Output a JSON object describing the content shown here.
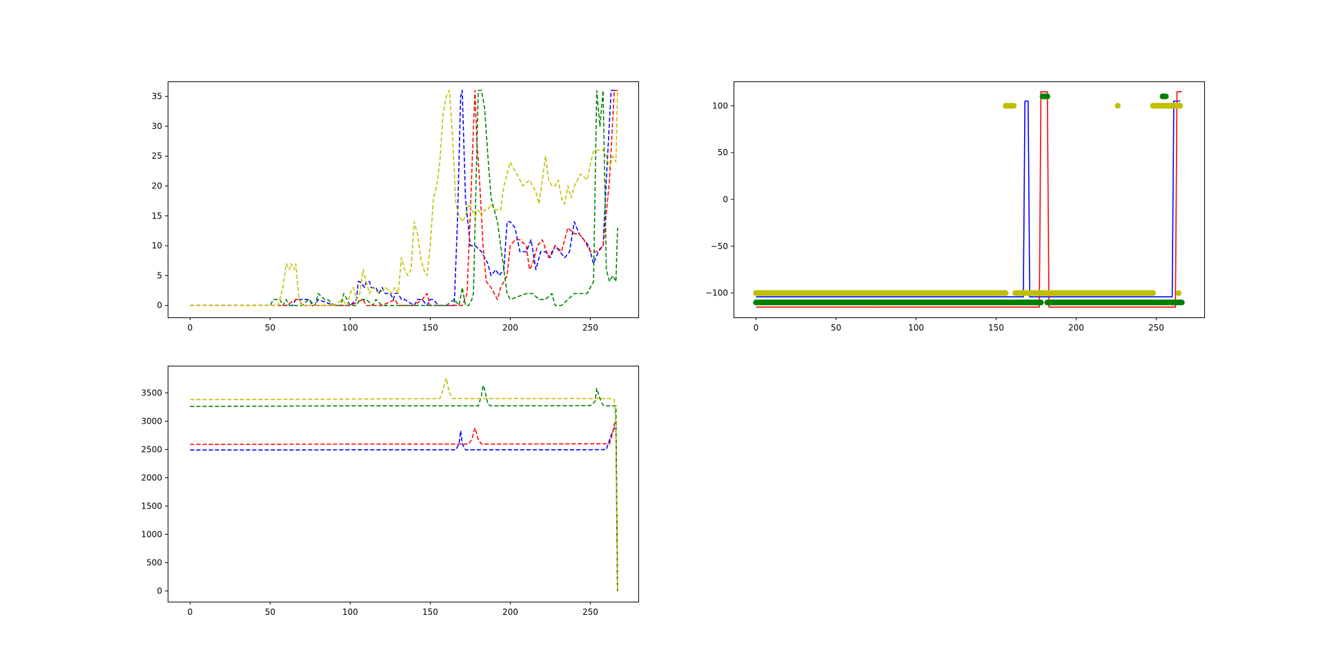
{
  "figure": {
    "background": "#ffffff"
  },
  "chart_data": [
    {
      "type": "line",
      "title": "",
      "xlabel": "",
      "ylabel": "",
      "xlim": [
        -14,
        280
      ],
      "ylim": [
        -2,
        37.5
      ],
      "xticks": [
        0,
        50,
        100,
        150,
        200,
        250
      ],
      "yticks": [
        0,
        5,
        10,
        15,
        20,
        25,
        30,
        35
      ],
      "line_style": "dashed",
      "series": [
        {
          "color": "#0000ff",
          "x": [
            0,
            64,
            66,
            75,
            76,
            78,
            80,
            90,
            100,
            104,
            105,
            106,
            109,
            110,
            112,
            113,
            116,
            118,
            120,
            122,
            125,
            127,
            128,
            130,
            132,
            134,
            140,
            142,
            145,
            148,
            150,
            152,
            155,
            165,
            167,
            169,
            170,
            172,
            175,
            178,
            182,
            186,
            188,
            191,
            193,
            196,
            198,
            200,
            203,
            206,
            210,
            213,
            216,
            219,
            222,
            225,
            228,
            231,
            234,
            237,
            240,
            243,
            246,
            249,
            252,
            255,
            258,
            260,
            263,
            265,
            267
          ],
          "y": [
            0,
            0,
            1,
            1,
            0,
            0,
            1,
            0,
            0,
            1,
            4,
            4,
            3,
            4,
            4,
            3,
            3,
            2,
            3,
            2,
            2,
            1,
            2,
            2,
            1,
            1,
            0,
            1,
            1,
            0,
            1,
            1,
            0,
            0,
            14,
            35,
            36,
            18,
            10,
            10,
            9,
            7,
            5,
            6,
            5,
            6,
            14,
            14,
            13,
            9,
            9,
            11,
            6,
            9,
            9,
            8,
            10,
            9,
            8,
            9,
            14,
            12,
            11,
            10,
            7,
            9,
            10,
            21,
            36,
            36,
            36
          ]
        },
        {
          "color": "#ff0000",
          "x": [
            0,
            60,
            66,
            68,
            70,
            75,
            80,
            100,
            108,
            110,
            112,
            120,
            128,
            130,
            135,
            140,
            145,
            148,
            150,
            155,
            170,
            173,
            175,
            177,
            178,
            179,
            181,
            183,
            185,
            188,
            190,
            192,
            194,
            196,
            198,
            200,
            203,
            206,
            210,
            212,
            214,
            217,
            220,
            224,
            228,
            232,
            236,
            240,
            243,
            246,
            250,
            254,
            258,
            262,
            265,
            267
          ],
          "y": [
            0,
            0,
            1,
            1,
            0,
            0,
            0,
            0,
            1,
            0,
            0,
            0,
            1,
            0,
            0,
            0,
            1,
            2,
            0,
            0,
            0,
            2,
            15,
            30,
            36,
            28,
            20,
            10,
            4,
            3,
            2,
            1,
            3,
            4,
            5,
            10,
            11,
            11,
            10,
            6,
            7,
            10,
            11,
            8,
            10,
            9,
            13,
            12,
            12,
            11,
            9,
            9,
            10,
            21,
            36,
            36
          ]
        },
        {
          "color": "#008000",
          "x": [
            0,
            50,
            52,
            56,
            58,
            60,
            62,
            70,
            74,
            78,
            80,
            84,
            86,
            90,
            94,
            96,
            98,
            100,
            104,
            106,
            110,
            114,
            116,
            120,
            124,
            130,
            140,
            160,
            165,
            168,
            170,
            172,
            174,
            176,
            177,
            179,
            180,
            182,
            184,
            186,
            188,
            190,
            192,
            194,
            196,
            198,
            200,
            210,
            214,
            218,
            222,
            226,
            228,
            232,
            236,
            240,
            244,
            248,
            252,
            254,
            256,
            258,
            260,
            262,
            264,
            266,
            267
          ],
          "y": [
            0,
            0,
            1,
            1,
            0,
            1,
            0,
            0,
            1,
            0,
            2,
            1,
            1,
            0,
            0,
            2,
            1,
            0,
            0,
            1,
            1,
            0,
            1,
            0,
            0,
            0,
            0,
            0,
            1,
            0,
            3,
            0,
            0,
            1,
            2,
            25,
            36,
            36,
            33,
            25,
            18,
            16,
            14,
            10,
            6,
            2,
            1,
            2,
            2,
            1,
            1,
            2,
            0,
            0,
            1,
            2,
            2,
            2,
            4,
            36,
            30,
            36,
            6,
            4,
            5,
            4,
            13
          ]
        },
        {
          "color": "#bfbf00",
          "x": [
            0,
            55,
            58,
            60,
            62,
            63,
            65,
            66,
            68,
            70,
            90,
            95,
            98,
            100,
            102,
            104,
            106,
            108,
            110,
            112,
            114,
            118,
            122,
            126,
            128,
            130,
            132,
            134,
            136,
            138,
            140,
            142,
            144,
            146,
            148,
            150,
            152,
            154,
            156,
            158,
            160,
            162,
            164,
            166,
            168,
            170,
            172,
            174,
            176,
            178,
            180,
            182,
            184,
            186,
            188,
            190,
            192,
            194,
            196,
            198,
            200,
            204,
            208,
            212,
            216,
            218,
            220,
            222,
            224,
            226,
            228,
            230,
            232,
            234,
            236,
            238,
            240,
            244,
            248,
            252,
            256,
            258,
            260,
            262,
            264,
            266,
            267
          ],
          "y": [
            0,
            0,
            3,
            7,
            6,
            7,
            6,
            7,
            1,
            0,
            0,
            1,
            0,
            2,
            3,
            1,
            2,
            6,
            4,
            2,
            3,
            2,
            3,
            2,
            3,
            2,
            8,
            6,
            5,
            6,
            14,
            12,
            8,
            6,
            5,
            10,
            18,
            20,
            24,
            32,
            35,
            36,
            28,
            17,
            15,
            14,
            15,
            17,
            16,
            15,
            16,
            15,
            16,
            16,
            17,
            16,
            16,
            16,
            20,
            22,
            24,
            22,
            20,
            21,
            19,
            17,
            21,
            25,
            21,
            20,
            20,
            21,
            18,
            17,
            20,
            18,
            20,
            22,
            21,
            26,
            26,
            26,
            25,
            23,
            25,
            24,
            36
          ]
        }
      ]
    },
    {
      "type": "line",
      "title": "",
      "xlabel": "",
      "ylabel": "",
      "xlim": [
        -14,
        280
      ],
      "ylim": [
        -126,
        126
      ],
      "xticks": [
        0,
        50,
        100,
        150,
        200,
        250
      ],
      "yticks": [
        100,
        50,
        0,
        -50,
        -100
      ],
      "series": [
        {
          "color": "#0000ff",
          "style": "solid",
          "x": [
            0,
            167,
            168,
            170,
            171,
            260,
            261,
            264,
            265
          ],
          "y": [
            -104,
            -104,
            105,
            105,
            -104,
            -104,
            105,
            105,
            105
          ]
        },
        {
          "color": "#ff0000",
          "style": "solid",
          "x": [
            0,
            177,
            178,
            182,
            183,
            262,
            263,
            265,
            266
          ],
          "y": [
            -115,
            -115,
            115,
            115,
            -115,
            -115,
            115,
            115,
            115
          ]
        },
        {
          "color": "#008000",
          "style": "markers",
          "segments": [
            [
              0,
              178
            ],
            [
              182,
              261
            ],
            [
              263,
              266
            ]
          ],
          "y": -110,
          "x_extra": [
            179,
            180,
            181,
            182,
            254,
            255,
            256
          ],
          "y_extra": 110
        },
        {
          "color": "#bfbf00",
          "style": "markers",
          "segments": [
            [
              0,
              156
            ],
            [
              162,
              248
            ]
          ],
          "y": -100,
          "x_extra": [
            156,
            157,
            158,
            159,
            160,
            161,
            226,
            248,
            249,
            250,
            251,
            252,
            253,
            254,
            255,
            256,
            257,
            258,
            259,
            260,
            261,
            262,
            263,
            264,
            265
          ],
          "y_extra": 100,
          "x_extra2": [
            264
          ],
          "y_extra2": -100
        }
      ]
    },
    {
      "type": "line",
      "title": "",
      "xlabel": "",
      "ylabel": "",
      "xlim": [
        -14,
        280
      ],
      "ylim": [
        -190,
        3980
      ],
      "xticks": [
        0,
        50,
        100,
        150,
        200,
        250
      ],
      "yticks": [
        0,
        500,
        1000,
        1500,
        2000,
        2500,
        3000,
        3500
      ],
      "line_style": "dashed",
      "series": [
        {
          "color": "#0000ff",
          "x": [
            0,
            60,
            100,
            166,
            168,
            169,
            170,
            172,
            250,
            260,
            263,
            265,
            266,
            267
          ],
          "y": [
            2490,
            2490,
            2495,
            2495,
            2600,
            2830,
            2600,
            2495,
            2495,
            2500,
            2750,
            2880,
            2900,
            0
          ]
        },
        {
          "color": "#ff0000",
          "x": [
            0,
            100,
            174,
            176,
            178,
            180,
            182,
            250,
            262,
            264,
            265,
            266,
            267
          ],
          "y": [
            2590,
            2595,
            2595,
            2680,
            2880,
            2680,
            2595,
            2600,
            2600,
            2800,
            2950,
            3000,
            0
          ]
        },
        {
          "color": "#008000",
          "x": [
            0,
            100,
            180,
            182,
            183,
            184,
            186,
            188,
            250,
            253,
            254,
            256,
            258,
            262,
            266,
            267
          ],
          "y": [
            3260,
            3270,
            3270,
            3450,
            3630,
            3560,
            3300,
            3270,
            3275,
            3350,
            3580,
            3400,
            3280,
            3270,
            3270,
            0
          ]
        },
        {
          "color": "#bfbf00",
          "x": [
            0,
            100,
            156,
            158,
            160,
            162,
            164,
            250,
            262,
            265,
            266,
            267
          ],
          "y": [
            3380,
            3390,
            3400,
            3550,
            3760,
            3500,
            3400,
            3400,
            3400,
            3380,
            2900,
            0
          ]
        }
      ]
    }
  ]
}
